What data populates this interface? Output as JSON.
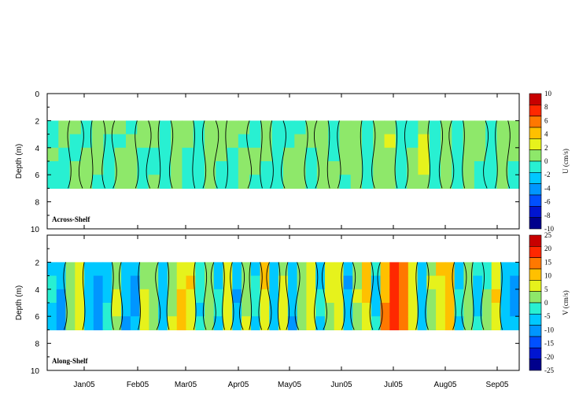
{
  "chart_data": [
    {
      "type": "heatmap",
      "title": "Across-Shelf",
      "ylabel": "Depth (m)",
      "ylim": [
        10,
        0
      ],
      "yticks": [
        "0",
        "2",
        "4",
        "6",
        "8",
        "10"
      ],
      "data_depth_range": [
        2,
        7
      ],
      "colorbar": {
        "label": "U (cm/s)",
        "range": [
          -10,
          10
        ],
        "ticks": [
          "10",
          "8",
          "6",
          "4",
          "2",
          "0",
          "-2",
          "-4",
          "-6",
          "-8",
          "-10"
        ],
        "colors": [
          "#00008c",
          "#0015d0",
          "#0050ff",
          "#0096ff",
          "#00c8ff",
          "#28f0d2",
          "#8ee86a",
          "#e6f21c",
          "#ffc000",
          "#ff7800",
          "#ff2800",
          "#c80000"
        ]
      },
      "profile": [
        -0.5,
        -0.3,
        0.4,
        -0.2,
        0.3,
        -0.4,
        0.5,
        0.2,
        -0.3,
        0.4,
        -0.6,
        0.3,
        0.1,
        -0.4,
        0.6,
        -0.2,
        0.3,
        0.5,
        -0.3,
        0.2,
        -0.5,
        0.4,
        0.1,
        -0.2,
        0.7,
        -0.4,
        0.3,
        0.9,
        -0.6,
        0.5,
        1.2,
        -0.8,
        0.4,
        1.5,
        -0.7,
        0.6,
        -1.0,
        0.8,
        0.3,
        -0.5,
        0.6,
        -0.3
      ]
    },
    {
      "type": "heatmap",
      "title": "Along-Shelf",
      "ylabel": "Depth (m)",
      "ylim": [
        10,
        0
      ],
      "yticks": [
        "2",
        "4",
        "6",
        "8",
        "10"
      ],
      "data_depth_range": [
        2,
        7
      ],
      "colorbar": {
        "label": "V (cm/s)",
        "range": [
          -25,
          25
        ],
        "ticks": [
          "25",
          "20",
          "15",
          "10",
          "5",
          "0",
          "-5",
          "-10",
          "-15",
          "-20",
          "-25"
        ],
        "colors": [
          "#00008c",
          "#0015d0",
          "#0050ff",
          "#0096ff",
          "#00c8ff",
          "#28f0d2",
          "#8ee86a",
          "#e6f21c",
          "#ffc000",
          "#ff7800",
          "#ff2800",
          "#c80000"
        ]
      },
      "profile": [
        -5,
        -8,
        2,
        6,
        -6,
        -9,
        -4,
        3,
        -7,
        -8,
        5,
        1,
        -6,
        4,
        8,
        7,
        -3,
        2,
        -5,
        6,
        -7,
        3,
        -4,
        8,
        -6,
        5,
        -8,
        2,
        7,
        -5,
        4,
        6,
        -7,
        3,
        9,
        -4,
        12,
        18,
        14,
        6,
        -6,
        3,
        8,
        10,
        -5,
        2,
        -4,
        1,
        7,
        -6,
        -8
      ]
    }
  ],
  "x_axis": {
    "ticks": [
      "Jan05",
      "Feb05",
      "Mar05",
      "Apr05",
      "May05",
      "Jun05",
      "Jul05",
      "Aug05",
      "Sep05"
    ]
  }
}
